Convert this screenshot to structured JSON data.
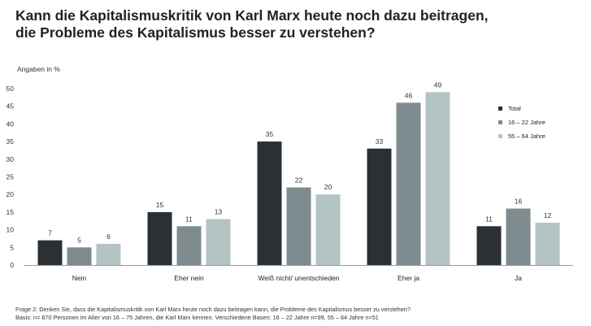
{
  "chart_data": {
    "type": "bar",
    "title": "Kann die Kapitalismuskritik von Karl Marx heute noch dazu beitragen, die Probleme des Kapitalismus besser zu verstehen?",
    "title_lines": [
      "Kann die Kapitalismuskritik von Karl Marx heute noch dazu beitragen,",
      "die Probleme des Kapitalismus besser zu verstehen?"
    ],
    "ylabel": "Angaben in %",
    "ylim": [
      0,
      50
    ],
    "yticks": [
      0,
      5,
      10,
      15,
      20,
      25,
      30,
      35,
      40,
      45,
      50
    ],
    "grid": false,
    "legend_position": "right",
    "categories": [
      "Nein",
      "Eher nein",
      "Weiß nicht/ unentschieden",
      "Eher ja",
      "Ja"
    ],
    "series": [
      {
        "name": "Total",
        "color": "#2b3035",
        "values": [
          7,
          15,
          35,
          33,
          11
        ]
      },
      {
        "name": "16 – 22 Jahre",
        "color": "#7f8c8f",
        "values": [
          5,
          11,
          22,
          46,
          16
        ]
      },
      {
        "name": "55 – 64 Jahre",
        "color": "#b4c3c4",
        "values": [
          6,
          13,
          20,
          49,
          12
        ]
      }
    ]
  },
  "footnote": {
    "line1": "Frage 2: Denken Sie, dass die Kapitalismuskritik von Karl Marx heute noch dazu beitragen kann, die Probleme des Kapitalismus besser zu verstehen?",
    "line2": "Basis: n= 870 Personen im Alter von 16 – 75 Jahren, die Karl Marx kennen. Verschiedene Basen: 16 – 22 Jahre n=99, 55 – 64 Jahre n=51"
  }
}
